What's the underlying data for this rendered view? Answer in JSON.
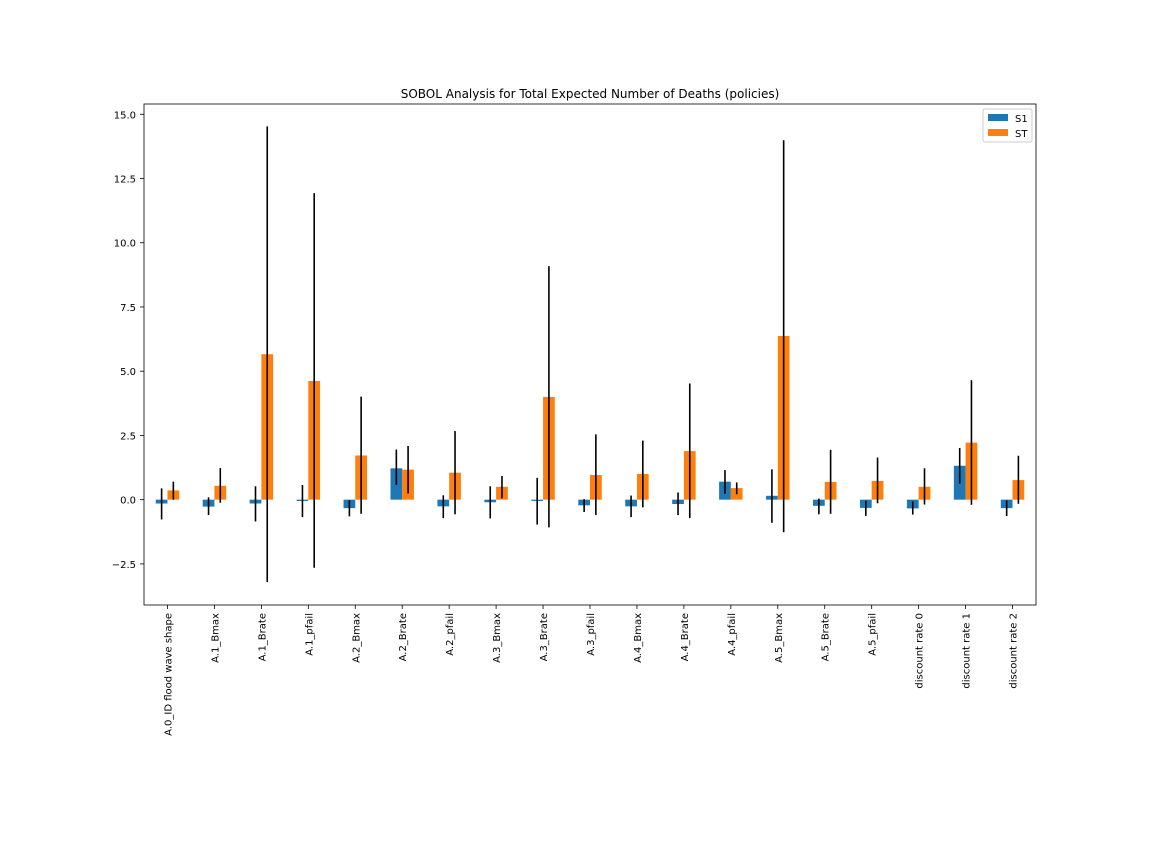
{
  "chart_data": {
    "type": "bar",
    "title": "SOBOL Analysis for Total Expected Number of Deaths (policies)",
    "xlabel": "",
    "ylabel": "",
    "ylim": [
      -4.1,
      15.4
    ],
    "yticks": [
      -2.5,
      0.0,
      2.5,
      5.0,
      7.5,
      10.0,
      12.5,
      15.0
    ],
    "ytick_labels": [
      "−2.5",
      "0.0",
      "2.5",
      "5.0",
      "7.5",
      "10.0",
      "12.5",
      "15.0"
    ],
    "grid": false,
    "legend_position": "top-right",
    "categories": [
      "A.0_ID flood wave shape",
      "A.1_Bmax",
      "A.1_Brate",
      "A.1_pfail",
      "A.2_Bmax",
      "A.2_Brate",
      "A.2_pfail",
      "A.3_Bmax",
      "A.3_Brate",
      "A.3_pfail",
      "A.4_Bmax",
      "A.4_Brate",
      "A.4_pfail",
      "A.5_Bmax",
      "A.5_Brate",
      "A.5_pfail",
      "discount rate 0",
      "discount rate 1",
      "discount rate 2"
    ],
    "series": [
      {
        "name": "S1",
        "color": "#1f77b4",
        "values": [
          -0.15,
          -0.27,
          -0.15,
          -0.05,
          -0.33,
          1.22,
          -0.26,
          -0.1,
          -0.05,
          -0.22,
          -0.26,
          -0.17,
          0.7,
          0.15,
          -0.24,
          -0.32,
          -0.34,
          1.32,
          -0.33
        ],
        "err_low": [
          -0.77,
          -0.6,
          -0.85,
          -0.68,
          -0.65,
          0.58,
          -0.72,
          -0.73,
          -0.97,
          -0.48,
          -0.68,
          -0.6,
          0.23,
          -0.9,
          -0.57,
          -0.63,
          -0.58,
          0.62,
          -0.64
        ],
        "err_high": [
          0.44,
          0.09,
          0.52,
          0.57,
          -0.02,
          1.95,
          0.17,
          0.52,
          0.85,
          0.02,
          0.16,
          0.28,
          1.15,
          1.18,
          0.04,
          -0.04,
          -0.07,
          2.01,
          -0.03
        ]
      },
      {
        "name": "ST",
        "color": "#ff7f0e",
        "values": [
          0.36,
          0.54,
          5.66,
          4.62,
          1.72,
          1.17,
          1.05,
          0.5,
          4.0,
          0.96,
          1.0,
          1.89,
          0.45,
          6.37,
          0.69,
          0.73,
          0.5,
          2.22,
          0.76
        ],
        "err_low": [
          0.0,
          -0.12,
          -3.21,
          -2.65,
          -0.55,
          0.24,
          -0.57,
          0.05,
          -1.08,
          -0.6,
          -0.3,
          -0.72,
          0.21,
          -1.27,
          -0.55,
          -0.14,
          -0.19,
          -0.2,
          -0.16
        ],
        "err_high": [
          0.7,
          1.23,
          14.53,
          11.93,
          4.01,
          2.09,
          2.67,
          0.92,
          9.09,
          2.54,
          2.3,
          4.52,
          0.67,
          13.99,
          1.94,
          1.64,
          1.22,
          4.65,
          1.71
        ]
      }
    ]
  }
}
